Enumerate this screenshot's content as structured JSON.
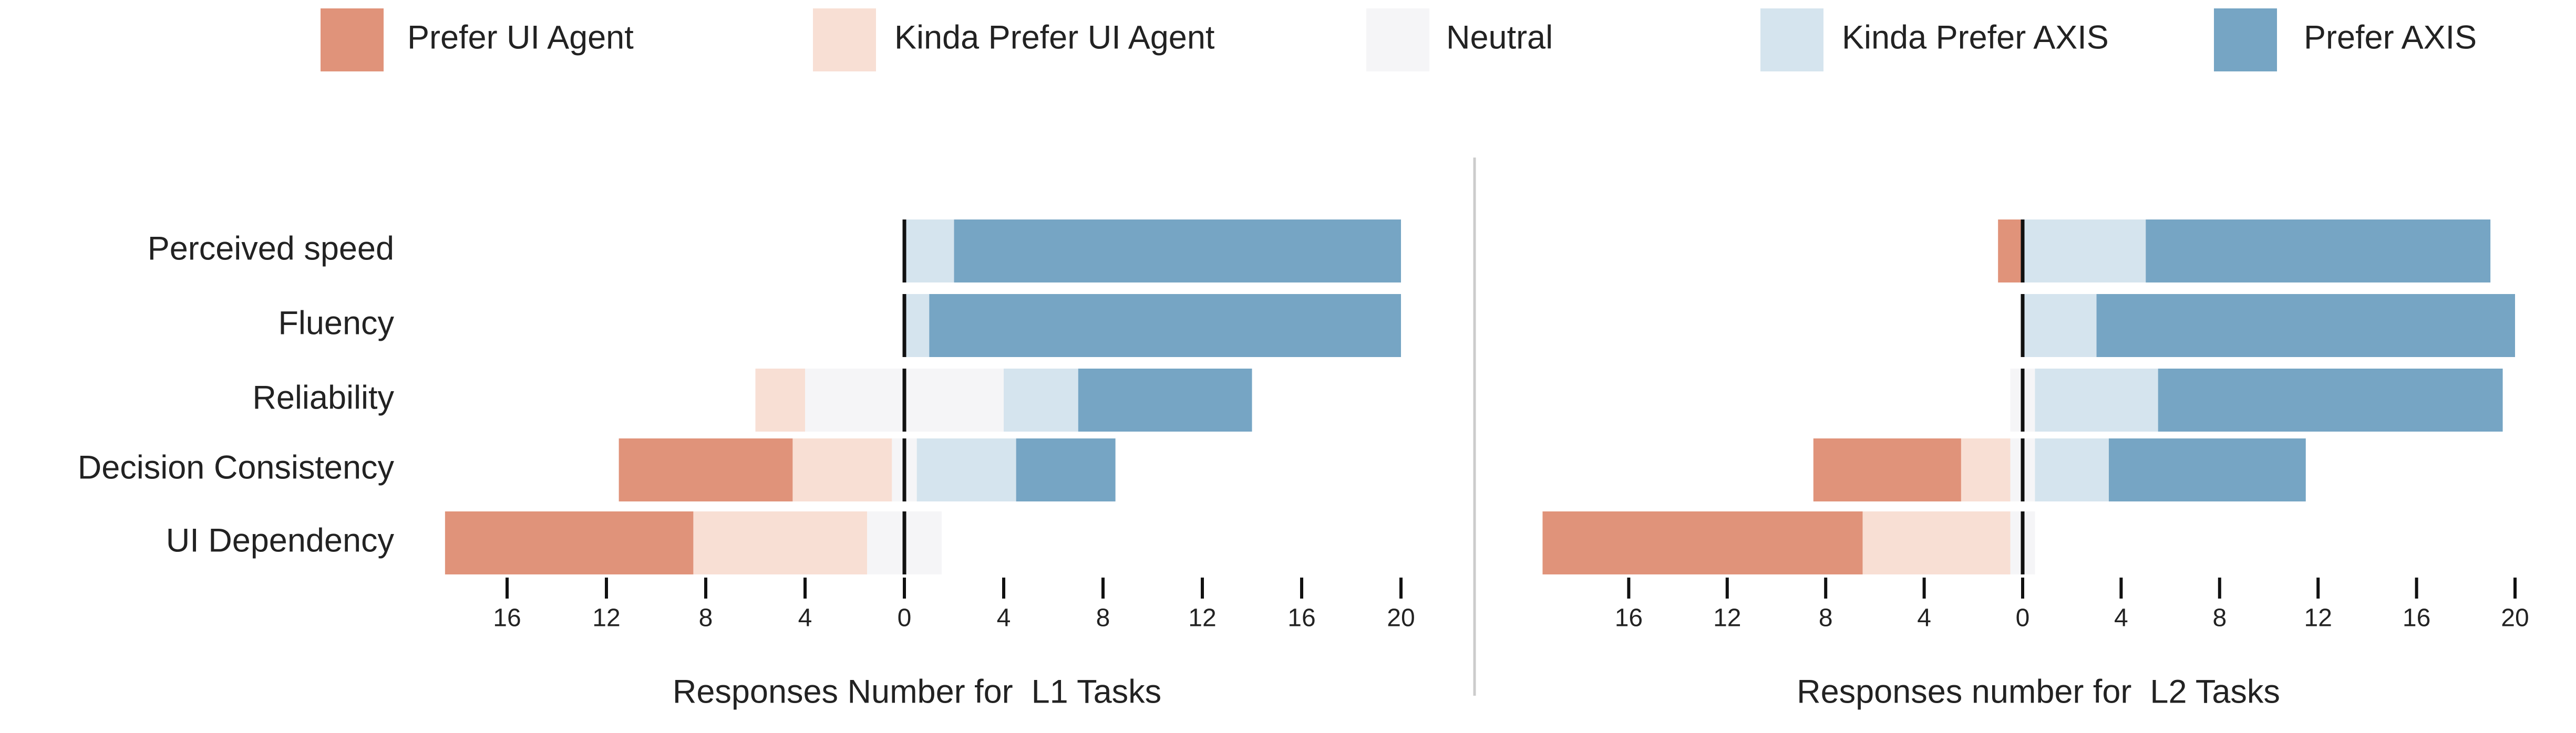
{
  "chart_data": [
    {
      "type": "diverging-bar",
      "xlabel": "Responses Number for  L1 Tasks",
      "categories": [
        "Perceived speed",
        "Fluency",
        "Reliability",
        "Decision Consistency",
        "UI Dependency"
      ],
      "series": [
        {
          "name": "Prefer UI Agent",
          "color": "#e0937a",
          "values": [
            0,
            0,
            0,
            7,
            10
          ]
        },
        {
          "name": "Kinda Prefer UI Agent",
          "color": "#f8dfd4",
          "values": [
            0,
            0,
            2,
            4,
            7
          ]
        },
        {
          "name": "Neutral",
          "color": "#f5f5f7",
          "values": [
            0,
            0,
            8,
            1,
            3
          ]
        },
        {
          "name": "Kinda Prefer AXIS",
          "color": "#d5e4ee",
          "values": [
            2,
            1,
            3,
            4,
            0
          ]
        },
        {
          "name": "Prefer AXIS",
          "color": "#76a5c4",
          "values": [
            18,
            19,
            7,
            4,
            0
          ]
        }
      ],
      "xlim": [
        -20,
        20
      ],
      "xticks": [
        {
          "value": -16,
          "label": "16"
        },
        {
          "value": -12,
          "label": "12"
        },
        {
          "value": -8,
          "label": "8"
        },
        {
          "value": -4,
          "label": "4"
        },
        0,
        4,
        8,
        12,
        16,
        20
      ]
    },
    {
      "type": "diverging-bar",
      "xlabel": "Responses number for  L2 Tasks",
      "series": [
        {
          "values": [
            1,
            0,
            0,
            6,
            13
          ]
        },
        {
          "values": [
            0,
            0,
            0,
            2,
            6
          ]
        },
        {
          "values": [
            0,
            0,
            1,
            1,
            1
          ]
        },
        {
          "values": [
            5,
            3,
            5,
            3,
            0
          ]
        },
        {
          "values": [
            14,
            17,
            14,
            8,
            0
          ]
        }
      ],
      "xlim": [
        -20,
        20
      ],
      "xticks": [
        {
          "value": -16,
          "label": "16"
        },
        {
          "value": -12,
          "label": "12"
        },
        {
          "value": -8,
          "label": "8"
        },
        {
          "value": -4,
          "label": "4"
        },
        0,
        4,
        8,
        12,
        16,
        20
      ]
    }
  ]
}
